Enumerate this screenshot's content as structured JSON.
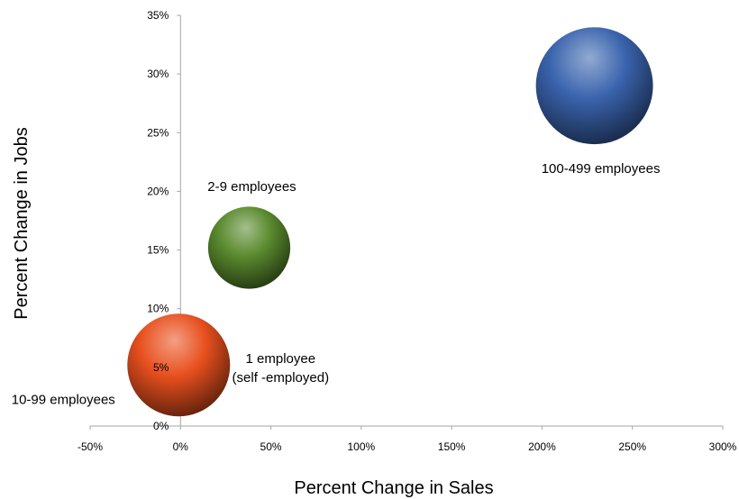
{
  "chart_data": {
    "type": "scatter",
    "title": "",
    "xlabel": "Percent Change in Sales",
    "ylabel": "Percent Change in Jobs",
    "xlim": [
      -50,
      300
    ],
    "ylim": [
      0,
      35
    ],
    "x_ticks": [
      {
        "value": -50,
        "label": "-50%"
      },
      {
        "value": 0,
        "label": "0%"
      },
      {
        "value": 50,
        "label": "50%"
      },
      {
        "value": 100,
        "label": "100%"
      },
      {
        "value": 150,
        "label": "150%"
      },
      {
        "value": 200,
        "label": "200%"
      },
      {
        "value": 250,
        "label": "250%"
      },
      {
        "value": 300,
        "label": "300%"
      }
    ],
    "y_ticks": [
      {
        "value": 0,
        "label": "0%"
      },
      {
        "value": 5,
        "label": "5%"
      },
      {
        "value": 10,
        "label": "10%"
      },
      {
        "value": 15,
        "label": "15%"
      },
      {
        "value": 20,
        "label": "20%"
      },
      {
        "value": 25,
        "label": "25%"
      },
      {
        "value": 30,
        "label": "30%"
      },
      {
        "value": 35,
        "label": "35%"
      }
    ],
    "grid": false,
    "legend": "none",
    "series": [
      {
        "label_lines": [
          "1 employee",
          "(self -employed)"
        ],
        "x": 7,
        "y": 6.3,
        "color": "#7a2e14",
        "relative_size": 0.55
      },
      {
        "label_lines": [
          "10-99 employees"
        ],
        "x": -1,
        "y": 5.2,
        "color": "#e8501e",
        "relative_size": 1.0
      },
      {
        "label_lines": [
          "2-9 employees"
        ],
        "x": 38,
        "y": 15.2,
        "color": "#5a8a2e",
        "relative_size": 0.8
      },
      {
        "label_lines": [
          "100-499 employees"
        ],
        "x": 229,
        "y": 29,
        "color": "#3a64ae",
        "relative_size": 1.14
      }
    ]
  }
}
